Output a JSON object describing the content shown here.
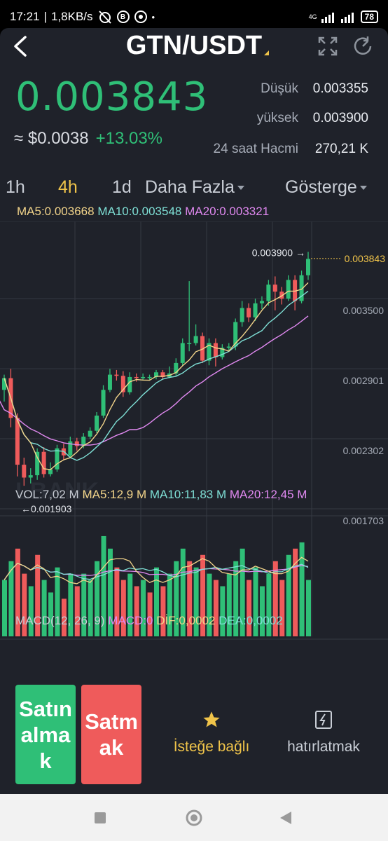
{
  "status_bar": {
    "time": "17:21",
    "network_speed": "1,8KB/s",
    "network_type": "4G",
    "battery": "78"
  },
  "header": {
    "title": "GTN/USDT"
  },
  "ticker": {
    "last_price": "0.003843",
    "usd_value": "≈ $0.0038",
    "change": "+13.03%",
    "low_label": "Düşük",
    "low_value": "0.003355",
    "high_label": "yüksek",
    "high_value": "0.003900",
    "volume_label": "24 saat Hacmi",
    "volume_value": "270,21 K"
  },
  "tabs": {
    "t1": "1h",
    "t2": "4h",
    "t3": "1d",
    "more": "Daha Fazla",
    "indicator": "Gösterge",
    "active": "4h"
  },
  "ma": {
    "ma5": "MA5:0.003668",
    "ma10": "MA10:0.003548",
    "ma20": "MA20:0.003321"
  },
  "volume_stats": {
    "vol": "VOL:7,02 M",
    "ma5": "MA5:12,9 M",
    "ma10": "MA10:11,83 M",
    "ma20": "MA20:12,45 M"
  },
  "macd_stats": {
    "label": "MACD(12, 26, 9)",
    "macd": "MACD:0",
    "dif": "DİF:0,0002",
    "dea": "DEA:0,0002"
  },
  "chart_data": {
    "type": "candlestick",
    "y_ticks": [
      "0.003500",
      "0.002901",
      "0.002302",
      "0.001703"
    ],
    "y_tick_values": [
      0.0035,
      0.002901,
      0.002302,
      0.001703
    ],
    "high_marker": "0.003900",
    "low_marker": "0.001903",
    "last_price_label": "0.003843",
    "watermark": "LBANK",
    "colors": {
      "up": "#2fbf77",
      "down": "#ef5b5b",
      "ma5": "#f2d48a",
      "ma10": "#7fe0d6",
      "ma20": "#e089f0"
    },
    "candles": [
      [
        0.00272,
        0.00282,
        0.00285,
        0.00262
      ],
      [
        0.00282,
        0.00248,
        0.0029,
        0.0024
      ],
      [
        0.00248,
        0.00208,
        0.00252,
        0.00198
      ],
      [
        0.00208,
        0.00197,
        0.00214,
        0.0019
      ],
      [
        0.00197,
        0.00199,
        0.00205,
        0.00192
      ],
      [
        0.00199,
        0.00219,
        0.00222,
        0.00195
      ],
      [
        0.00219,
        0.002,
        0.00223,
        0.00197
      ],
      [
        0.002,
        0.00204,
        0.0021,
        0.00198
      ],
      [
        0.00204,
        0.00222,
        0.00225,
        0.00202
      ],
      [
        0.00222,
        0.00216,
        0.00226,
        0.00212
      ],
      [
        0.00216,
        0.00228,
        0.00232,
        0.00214
      ],
      [
        0.00228,
        0.00224,
        0.00231,
        0.0022
      ],
      [
        0.00224,
        0.00232,
        0.00235,
        0.00222
      ],
      [
        0.00232,
        0.00237,
        0.0024,
        0.0023
      ],
      [
        0.00237,
        0.0025,
        0.00253,
        0.00235
      ],
      [
        0.0025,
        0.00272,
        0.00276,
        0.00248
      ],
      [
        0.00272,
        0.00285,
        0.0029,
        0.0027
      ],
      [
        0.00285,
        0.00284,
        0.00289,
        0.0028
      ],
      [
        0.00284,
        0.0027,
        0.00288,
        0.00266
      ],
      [
        0.0027,
        0.00283,
        0.00287,
        0.00268
      ],
      [
        0.00283,
        0.00282,
        0.00286,
        0.00279
      ],
      [
        0.00282,
        0.00283,
        0.00286,
        0.0028
      ],
      [
        0.00283,
        0.00283,
        0.00285,
        0.0028
      ],
      [
        0.00283,
        0.00287,
        0.00289,
        0.00281
      ],
      [
        0.00287,
        0.00283,
        0.00289,
        0.00281
      ],
      [
        0.00283,
        0.00286,
        0.00292,
        0.00282
      ],
      [
        0.00286,
        0.00295,
        0.00299,
        0.00284
      ],
      [
        0.00295,
        0.00312,
        0.00316,
        0.00293
      ],
      [
        0.00312,
        0.00312,
        0.00365,
        0.00305
      ],
      [
        0.00312,
        0.00318,
        0.00328,
        0.0031
      ],
      [
        0.00318,
        0.00297,
        0.00321,
        0.00295
      ],
      [
        0.00297,
        0.00312,
        0.00316,
        0.00293
      ],
      [
        0.00312,
        0.003,
        0.00316,
        0.00292
      ],
      [
        0.003,
        0.00308,
        0.00311,
        0.00298
      ],
      [
        0.00308,
        0.00309,
        0.00312,
        0.00305
      ],
      [
        0.00309,
        0.0033,
        0.00333,
        0.00306
      ],
      [
        0.0033,
        0.00342,
        0.00348,
        0.00326
      ],
      [
        0.00342,
        0.00334,
        0.00346,
        0.0033
      ],
      [
        0.00334,
        0.00346,
        0.0035,
        0.00331
      ],
      [
        0.00346,
        0.00348,
        0.00352,
        0.00341
      ],
      [
        0.00348,
        0.00362,
        0.00366,
        0.00344
      ],
      [
        0.00362,
        0.00356,
        0.00369,
        0.0034
      ],
      [
        0.00356,
        0.0035,
        0.0036,
        0.00345
      ],
      [
        0.0035,
        0.00366,
        0.0037,
        0.00348
      ],
      [
        0.00366,
        0.00348,
        0.0037,
        0.0034
      ],
      [
        0.00348,
        0.0037,
        0.00374,
        0.00346
      ],
      [
        0.0037,
        0.00384,
        0.0039,
        0.00366
      ]
    ],
    "volumes": [
      9,
      12,
      14,
      10,
      8,
      13,
      9,
      7,
      11,
      6,
      10,
      8,
      10,
      9,
      12,
      16,
      14,
      11,
      9,
      10,
      8,
      9,
      7,
      11,
      8,
      10,
      12,
      14,
      12,
      11,
      13,
      10,
      9,
      8,
      10,
      12,
      14,
      9,
      11,
      8,
      10,
      12,
      9,
      13,
      14,
      15,
      9
    ],
    "volume_colors": [
      "up",
      "up",
      "down",
      "down",
      "up",
      "down",
      "up",
      "up",
      "up",
      "down",
      "up",
      "down",
      "up",
      "up",
      "up",
      "up",
      "up",
      "down",
      "down",
      "up",
      "down",
      "up",
      "down",
      "up",
      "down",
      "up",
      "up",
      "up",
      "down",
      "up",
      "down",
      "up",
      "down",
      "up",
      "up",
      "up",
      "up",
      "down",
      "up",
      "up",
      "up",
      "down",
      "down",
      "up",
      "down",
      "up",
      "up"
    ]
  },
  "actions": {
    "buy": "Satın almak",
    "sell": "Satmak",
    "favorite": "İsteğe bağlı",
    "alert": "hatırlatmak"
  }
}
